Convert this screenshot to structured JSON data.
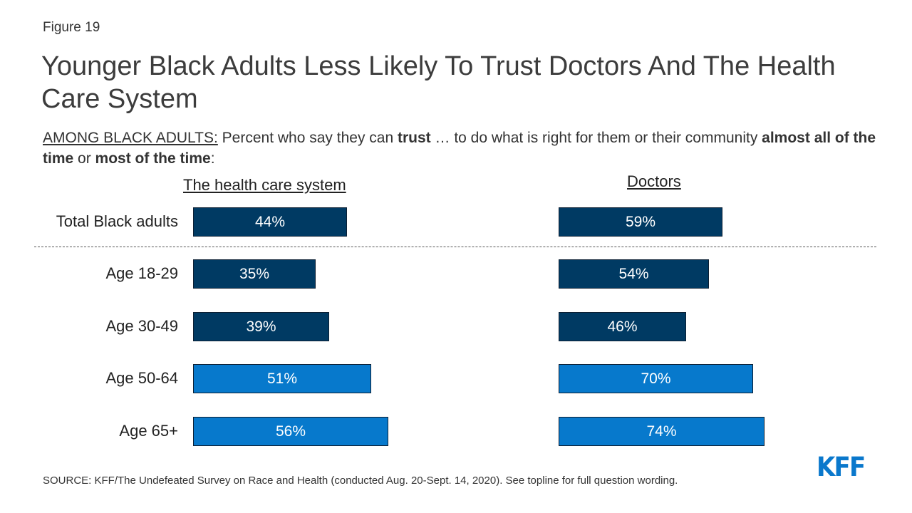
{
  "figure_label": "Figure 19",
  "chart_data": {
    "type": "bar",
    "title": "Younger Black Adults Less Likely To Trust Doctors And The Health Care System",
    "subtitle": {
      "prefix": "AMONG BLACK ADULTS:",
      "text_1": " Percent who say they can ",
      "bold_1": "trust",
      "text_2": " … to do what is right for them or their community ",
      "bold_2": "almost all of the time",
      "text_3": " or ",
      "bold_3": "most of the time",
      "text_4": ":"
    },
    "categories": [
      "Total Black adults",
      "Age 18-29",
      "Age 30-49",
      "Age 50-64",
      "Age 65+"
    ],
    "series": [
      {
        "name": "The health care system",
        "values": [
          44,
          35,
          39,
          51,
          56
        ]
      },
      {
        "name": "Doctors",
        "values": [
          59,
          54,
          46,
          70,
          74
        ]
      }
    ],
    "value_labels": [
      [
        "44%",
        "35%",
        "39%",
        "51%",
        "56%"
      ],
      [
        "59%",
        "54%",
        "46%",
        "70%",
        "74%"
      ]
    ],
    "bar_colors": [
      "#003a63",
      "#003a63",
      "#003a63",
      "#0779cc",
      "#0779cc"
    ],
    "ylim": [
      0,
      100
    ],
    "grid": false
  },
  "source": "SOURCE: KFF/The Undefeated Survey on Race and Health (conducted Aug. 20-Sept. 14, 2020). See topline for full question wording.",
  "logo_text": "KFF"
}
